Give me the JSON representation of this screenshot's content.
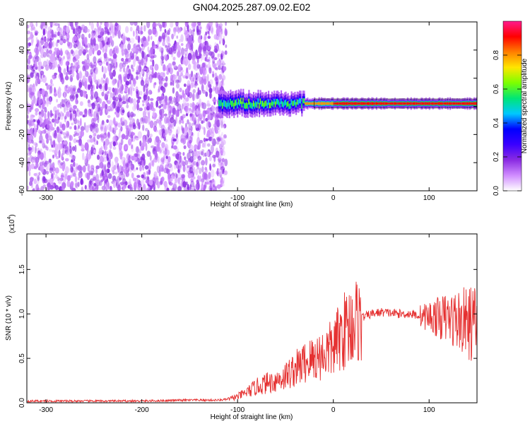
{
  "title": "GN04.2025.287.09.02.E02",
  "chart_data": [
    {
      "type": "heatmap",
      "name": "spectrogram",
      "xlabel": "Height of straight line (km)",
      "ylabel": "Frequency (Hz)",
      "xlim": [
        -320,
        150
      ],
      "ylim": [
        -60,
        60
      ],
      "x_ticks": [
        -300,
        -200,
        -100,
        0,
        100
      ],
      "x_tick_labels": [
        "-300",
        "-200",
        "-100",
        "0",
        "100"
      ],
      "y_ticks": [
        -60,
        -40,
        -20,
        0,
        20,
        40,
        60
      ],
      "y_tick_labels": [
        "-60",
        "-40",
        "-20",
        "0",
        "20",
        "40",
        "60"
      ],
      "noise_region_x": [
        -320,
        -120
      ],
      "signal_region_x": [
        -120,
        150
      ],
      "signal_frequency_hz": 2,
      "colorbar": {
        "label": "Normalized spectral amplitude",
        "range": [
          0,
          1
        ],
        "ticks": [
          0.0,
          0.2,
          0.4,
          0.6,
          0.8
        ],
        "tick_labels": [
          "0.0",
          "0.2",
          "0.4",
          "0.6",
          "0.8"
        ],
        "colors": [
          "#ffffff",
          "#d08cff",
          "#8a2be2",
          "#3a00ff",
          "#0000ff",
          "#00c8ff",
          "#00e676",
          "#7cff00",
          "#ffe600",
          "#ff7f00",
          "#ff0000",
          "#ff1a8c"
        ]
      }
    },
    {
      "type": "line",
      "name": "snr",
      "xlabel": "Height of straight line (km)",
      "ylabel": "SNR (10 * v/v)",
      "y_multiplier_base": "(x10",
      "y_multiplier_exp": "4",
      "y_multiplier_close": ")",
      "xlim": [
        -320,
        150
      ],
      "ylim": [
        0,
        1.9
      ],
      "x_ticks": [
        -300,
        -200,
        -100,
        0,
        100
      ],
      "x_tick_labels": [
        "-300",
        "-200",
        "-100",
        "0",
        "100"
      ],
      "y_ticks": [
        0.0,
        0.5,
        1.0,
        1.5
      ],
      "y_tick_labels": [
        "0.0",
        "0.5",
        "1.0",
        "1.5"
      ],
      "color": "#e53030",
      "series": [
        {
          "x": [
            -320,
            -300,
            -250,
            -200,
            -150,
            -120,
            -110,
            -100,
            -90,
            -80,
            -70,
            -60,
            -50,
            -40,
            -30,
            -20,
            -10,
            0,
            10,
            20,
            30,
            40,
            50,
            60,
            70,
            80,
            90,
            100,
            110,
            120,
            130,
            140,
            150
          ],
          "y": [
            0.02,
            0.02,
            0.02,
            0.02,
            0.03,
            0.03,
            0.04,
            0.07,
            0.12,
            0.18,
            0.22,
            0.25,
            0.3,
            0.38,
            0.45,
            0.5,
            0.55,
            0.62,
            0.8,
            0.9,
            0.96,
            1.0,
            1.02,
            1.01,
            1.0,
            1.0,
            0.98,
            0.97,
            0.96,
            0.95,
            0.93,
            0.9,
            0.88
          ]
        }
      ]
    }
  ]
}
